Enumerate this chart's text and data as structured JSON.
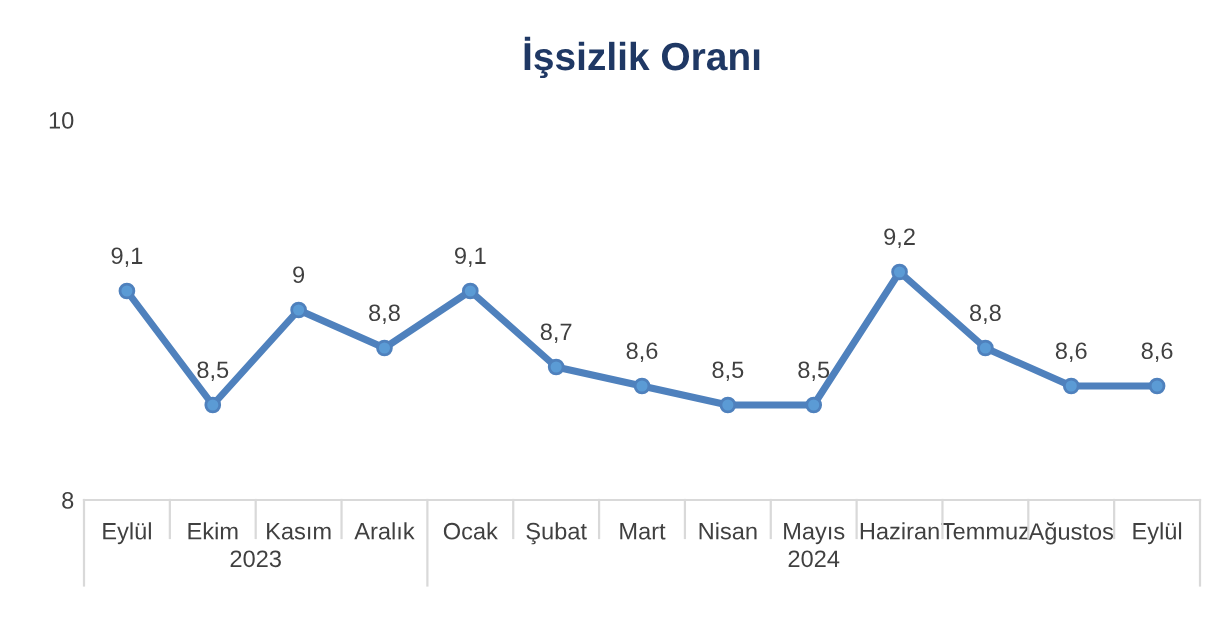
{
  "chart_data": {
    "type": "line",
    "title": "İşsizlik Oranı",
    "categories": [
      "Eylül",
      "Ekim",
      "Kasım",
      "Aralık",
      "Ocak",
      "Şubat",
      "Mart",
      "Nisan",
      "Mayıs",
      "Haziran",
      "Temmuz",
      "Ağustos",
      "Eylül"
    ],
    "series": [
      {
        "color": "#4f81bd",
        "values": [
          9.1,
          8.5,
          9,
          8.8,
          9.1,
          8.7,
          8.6,
          8.5,
          8.5,
          9.2,
          8.8,
          8.6,
          8.6
        ],
        "value_labels": [
          "9,1",
          "8,5",
          "9",
          "8,8",
          "9,1",
          "8,7",
          "8,6",
          "8,5",
          "8,5",
          "9,2",
          "8,8",
          "8,6",
          "8,6"
        ]
      }
    ],
    "ylim": [
      8,
      10
    ],
    "yticks": [
      8,
      10
    ],
    "grid": false,
    "marker": "circle",
    "line_style": "solid",
    "annotations": [
      "2023",
      "2024"
    ]
  }
}
